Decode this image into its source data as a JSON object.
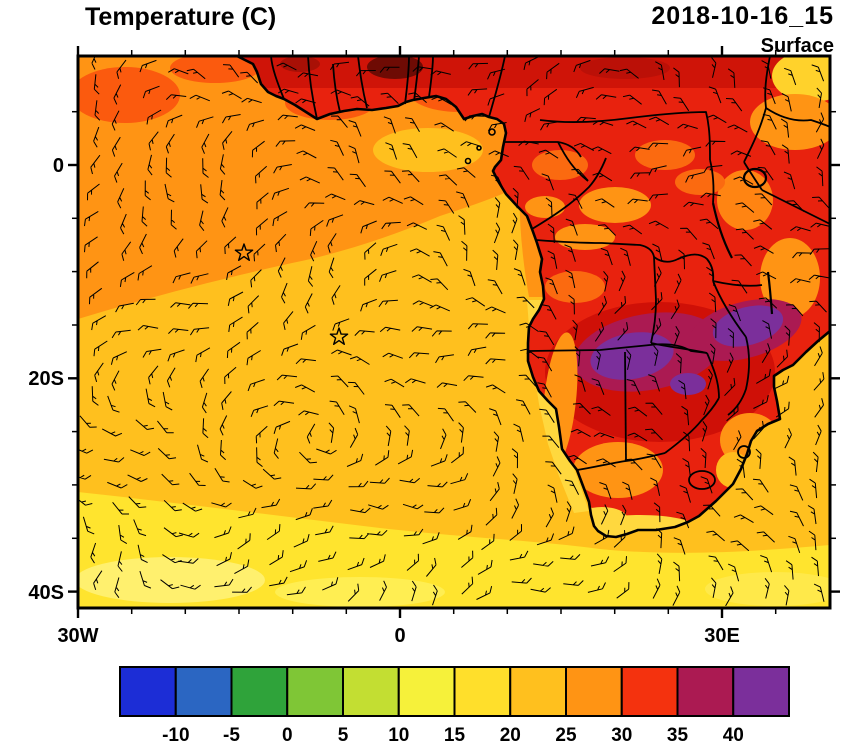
{
  "header": {
    "title": "Temperature (C)",
    "datetime": "2018-10-16_15",
    "level": "Surface"
  },
  "axes": {
    "y_labels": [
      "0",
      "20S",
      "40S"
    ],
    "x_labels": [
      "30W",
      "0",
      "30E"
    ]
  },
  "colorbar": {
    "tick_labels": [
      "-10",
      "-5",
      "0",
      "5",
      "10",
      "15",
      "20",
      "25",
      "30",
      "35",
      "40"
    ],
    "colors": [
      "#1c2dd6",
      "#2b66c2",
      "#2fa33a",
      "#7fc636",
      "#c3de32",
      "#f6f13a",
      "#ffdf2b",
      "#ffc01e",
      "#ff9414",
      "#f4320e",
      "#ab1a52",
      "#7b2f9b"
    ]
  },
  "chart_data": {
    "type": "heatmap",
    "subtype": "filled-contour surface temperature map with wind barbs",
    "title": "Temperature (C)",
    "valid_time": "2018-10-16_15",
    "level": "Surface",
    "units": "C",
    "lon_axis": {
      "labeled_ticks": [
        "30W",
        "0",
        "30E"
      ],
      "range": [
        "30W",
        "40E"
      ]
    },
    "lat_axis": {
      "labeled_ticks": [
        "0",
        "20S",
        "40S"
      ],
      "range": [
        "10N",
        "41S"
      ]
    },
    "levels_c": [
      -10,
      -5,
      0,
      5,
      10,
      15,
      20,
      25,
      30,
      35,
      40
    ],
    "palette": [
      "#1c2dd6",
      "#2b66c2",
      "#2fa33a",
      "#7fc636",
      "#c3de32",
      "#f6f13a",
      "#ffdf2b",
      "#ffc01e",
      "#ff9414",
      "#f4320e",
      "#ab1a52",
      "#7b2f9b"
    ],
    "overlays": [
      "wind barbs on regular grid",
      "coastlines",
      "country borders",
      "lakes",
      "star markers"
    ],
    "markers": [
      {
        "symbol": "star",
        "lon": "14.5W",
        "lat": "8.2S"
      },
      {
        "symbol": "star",
        "lon": "5.7W",
        "lat": "16.1S"
      }
    ],
    "field_summary": [
      {
        "region": "tropical North Atlantic and Gulf of Guinea",
        "approx_temp_c": "25-30"
      },
      {
        "region": "central South Atlantic subtropics",
        "approx_temp_c": "20-25"
      },
      {
        "region": "Southern Ocean band south of ~32S",
        "approx_temp_c": "15-20"
      },
      {
        "region": "Benguela upwelling strip along Namibian coast",
        "approx_temp_c": "15-20"
      },
      {
        "region": "Sahel and Congo basin land areas",
        "approx_temp_c": "30-35"
      },
      {
        "region": "Namibia-Botswana-Zimbabwe interior maxima (maroon/purple)",
        "approx_temp_c": "35-45"
      },
      {
        "region": "South African south coast",
        "approx_temp_c": "20-25"
      }
    ]
  }
}
